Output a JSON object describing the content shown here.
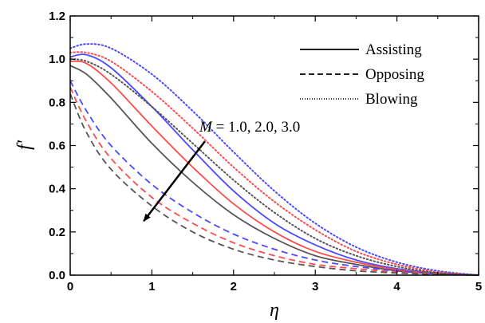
{
  "chart_data": {
    "type": "line",
    "xlabel": "η",
    "ylabel": "f'",
    "xlim": [
      0,
      5
    ],
    "ylim": [
      0,
      1.2
    ],
    "xticks": [
      "0",
      "1",
      "2",
      "3",
      "4",
      "5"
    ],
    "yticks": [
      "0.0",
      "0.2",
      "0.4",
      "0.6",
      "0.8",
      "1.0",
      "1.2"
    ],
    "grid": false,
    "legend": {
      "position": "top-right",
      "entries": [
        {
          "label": "Assisting",
          "style": "solid"
        },
        {
          "label": "Opposing",
          "style": "dashed"
        },
        {
          "label": "Blowing",
          "style": "dotted"
        }
      ]
    },
    "annotation": {
      "prefix": "M",
      "text": " = 1.0, 2.0, 3.0",
      "arrow_from": [
        1.65,
        0.62
      ],
      "arrow_to": [
        0.9,
        0.25
      ]
    },
    "series": [
      {
        "case": "Assisting",
        "M": "1.0",
        "color": "#4a4aff",
        "style": "solid",
        "x": [
          0,
          0.2,
          0.5,
          1.0,
          1.5,
          2.0,
          2.5,
          3.0,
          3.5,
          4.0,
          4.5,
          5.0
        ],
        "y": [
          1.01,
          1.02,
          0.96,
          0.78,
          0.58,
          0.39,
          0.24,
          0.14,
          0.07,
          0.03,
          0.01,
          0.0
        ]
      },
      {
        "case": "Assisting",
        "M": "2.0",
        "color": "#ff4a4a",
        "style": "solid",
        "x": [
          0,
          0.2,
          0.5,
          1.0,
          1.5,
          2.0,
          2.5,
          3.0,
          3.5,
          4.0,
          4.5,
          5.0
        ],
        "y": [
          0.99,
          0.98,
          0.89,
          0.69,
          0.5,
          0.33,
          0.2,
          0.11,
          0.06,
          0.025,
          0.008,
          0.0
        ]
      },
      {
        "case": "Assisting",
        "M": "3.0",
        "color": "#555555",
        "style": "solid",
        "x": [
          0,
          0.2,
          0.5,
          1.0,
          1.5,
          2.0,
          2.5,
          3.0,
          3.5,
          4.0,
          4.5,
          5.0
        ],
        "y": [
          0.97,
          0.93,
          0.82,
          0.61,
          0.43,
          0.28,
          0.17,
          0.09,
          0.05,
          0.02,
          0.006,
          0.0
        ]
      },
      {
        "case": "Opposing",
        "M": "1.0",
        "color": "#4a4aff",
        "style": "dashed",
        "x": [
          0,
          0.2,
          0.5,
          1.0,
          1.5,
          2.0,
          2.5,
          3.0,
          3.5,
          4.0,
          4.5,
          5.0
        ],
        "y": [
          0.9,
          0.76,
          0.6,
          0.42,
          0.29,
          0.19,
          0.12,
          0.07,
          0.04,
          0.02,
          0.006,
          0.0
        ]
      },
      {
        "case": "Opposing",
        "M": "2.0",
        "color": "#ff4a4a",
        "style": "dashed",
        "x": [
          0,
          0.2,
          0.5,
          1.0,
          1.5,
          2.0,
          2.5,
          3.0,
          3.5,
          4.0,
          4.5,
          5.0
        ],
        "y": [
          0.87,
          0.71,
          0.54,
          0.36,
          0.24,
          0.15,
          0.09,
          0.05,
          0.03,
          0.015,
          0.005,
          0.0
        ]
      },
      {
        "case": "Opposing",
        "M": "3.0",
        "color": "#555555",
        "style": "dashed",
        "x": [
          0,
          0.2,
          0.5,
          1.0,
          1.5,
          2.0,
          2.5,
          3.0,
          3.5,
          4.0,
          4.5,
          5.0
        ],
        "y": [
          0.84,
          0.66,
          0.49,
          0.32,
          0.2,
          0.12,
          0.07,
          0.04,
          0.02,
          0.01,
          0.003,
          0.0
        ]
      },
      {
        "case": "Blowing",
        "M": "1.0",
        "color": "#4a4aff",
        "style": "dotted",
        "x": [
          0,
          0.2,
          0.5,
          1.0,
          1.5,
          2.0,
          2.5,
          3.0,
          3.5,
          4.0,
          4.5,
          5.0
        ],
        "y": [
          1.05,
          1.07,
          1.05,
          0.93,
          0.76,
          0.57,
          0.39,
          0.24,
          0.13,
          0.06,
          0.02,
          0.0
        ]
      },
      {
        "case": "Blowing",
        "M": "2.0",
        "color": "#ff4a4a",
        "style": "dotted",
        "x": [
          0,
          0.2,
          0.5,
          1.0,
          1.5,
          2.0,
          2.5,
          3.0,
          3.5,
          4.0,
          4.5,
          5.0
        ],
        "y": [
          1.03,
          1.03,
          0.99,
          0.85,
          0.68,
          0.5,
          0.34,
          0.21,
          0.11,
          0.05,
          0.015,
          0.0
        ]
      },
      {
        "case": "Blowing",
        "M": "3.0",
        "color": "#555555",
        "style": "dotted",
        "x": [
          0,
          0.2,
          0.5,
          1.0,
          1.5,
          2.0,
          2.5,
          3.0,
          3.5,
          4.0,
          4.5,
          5.0
        ],
        "y": [
          1.0,
          0.99,
          0.93,
          0.78,
          0.61,
          0.44,
          0.29,
          0.17,
          0.09,
          0.04,
          0.01,
          0.0
        ]
      }
    ]
  }
}
